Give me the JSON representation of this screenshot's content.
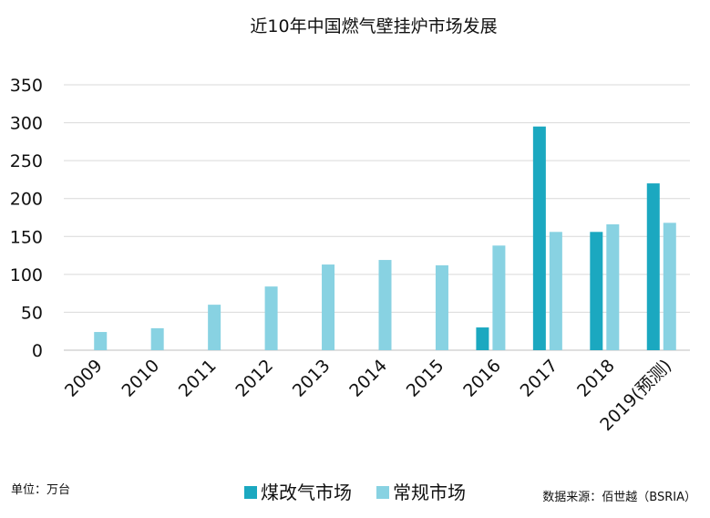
{
  "chart_data": {
    "type": "bar",
    "title": "近10年中国燃气壁挂炉市场发展",
    "categories": [
      "2009",
      "2010",
      "2011",
      "2012",
      "2013",
      "2014",
      "2015",
      "2016",
      "2017",
      "2018",
      "2019(预测)"
    ],
    "series": [
      {
        "name": "煤改气市场",
        "color": "#1ba8c0",
        "values": [
          null,
          null,
          null,
          null,
          null,
          null,
          null,
          30,
          295,
          156,
          220
        ]
      },
      {
        "name": "常规市场",
        "color": "#88d2e2",
        "values": [
          24,
          29,
          60,
          84,
          113,
          119,
          112,
          138,
          156,
          166,
          168
        ]
      }
    ],
    "yticks": [
      0,
      50,
      100,
      150,
      200,
      250,
      300,
      350
    ],
    "ylim": [
      0,
      350
    ],
    "grid": true,
    "legend_position": "bottom-center",
    "unit_note": "单位：万台",
    "source_note": "数据来源：佰世越（BSRIA）"
  }
}
